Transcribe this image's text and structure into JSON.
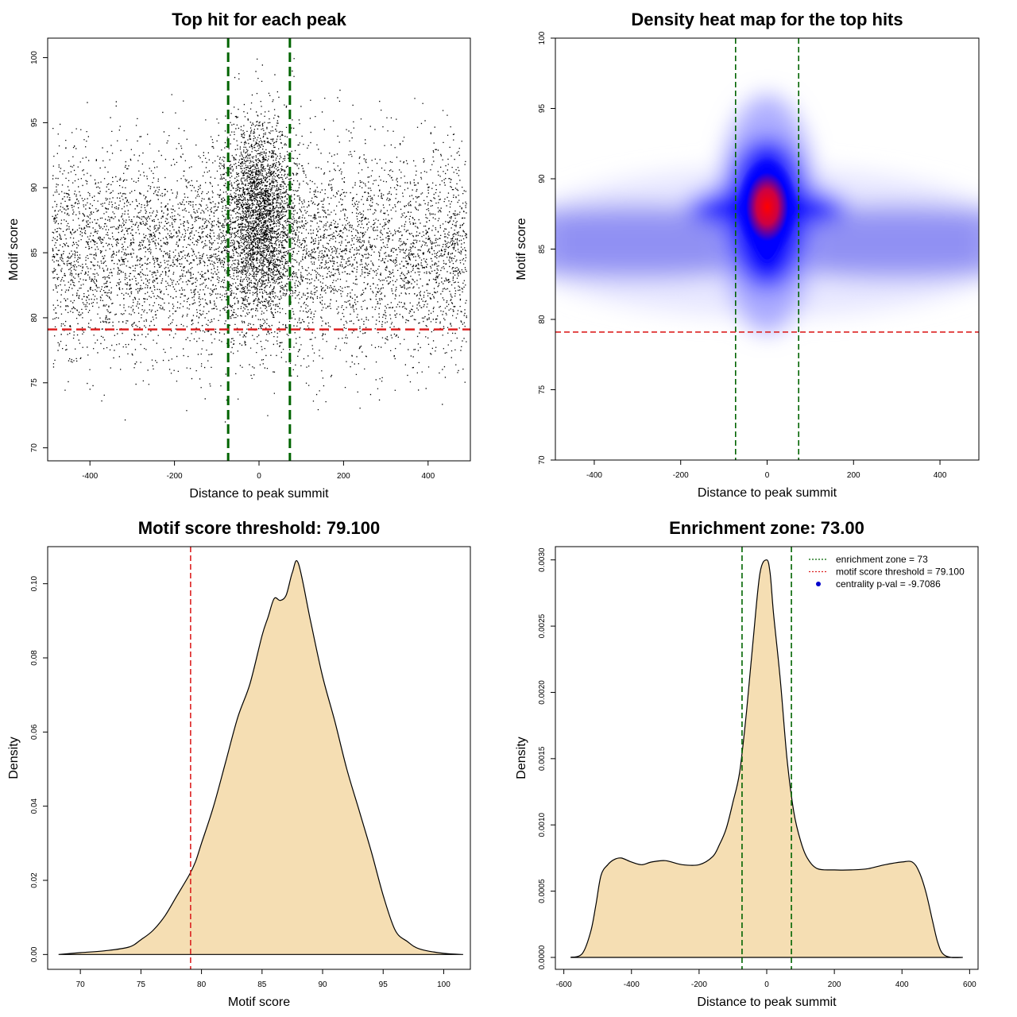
{
  "chart_data": [
    {
      "id": "scatter",
      "type": "scatter",
      "title": "Top hit for each peak",
      "xlabel": "Distance to peak summit",
      "ylabel": "Motif score",
      "xlim": [
        -500,
        500
      ],
      "ylim": [
        69,
        101.5
      ],
      "xticks": [
        -400,
        -200,
        0,
        200,
        400
      ],
      "yticks": [
        70,
        75,
        80,
        85,
        90,
        95,
        100
      ],
      "point_color": "#000000",
      "vlines": [
        -73,
        73
      ],
      "vline_color": "#006400",
      "hline": 79.1,
      "hline_color": "#dd2222",
      "distribution": {
        "n_points": 9000,
        "x_range": [
          -490,
          490
        ],
        "central_fraction": 0.3,
        "central_x_sd": 40,
        "score_center_central": 88,
        "score_center_background": 85,
        "score_sd": 4
      }
    },
    {
      "id": "heatmap",
      "type": "heatmap",
      "title": "Density heat map for the top hits",
      "xlabel": "Distance to peak summit",
      "ylabel": "Motif score",
      "xlim": [
        -490,
        490
      ],
      "ylim": [
        70,
        100
      ],
      "xticks": [
        -400,
        -200,
        0,
        200,
        400
      ],
      "yticks": [
        70,
        75,
        80,
        85,
        90,
        95,
        100
      ],
      "color_scale": [
        "#ffffff",
        "#0000ff",
        "#ff0000"
      ],
      "peak": {
        "x": 0,
        "y": 88
      },
      "background_band_score": 85.5,
      "vlines": [
        -73,
        73
      ],
      "vline_color": "#006400",
      "hline": 79.1,
      "hline_color": "#dd2222"
    },
    {
      "id": "score-density",
      "type": "area",
      "title": "Motif score threshold: 79.100",
      "xlabel": "Motif score",
      "ylabel": "Density",
      "xlim": [
        67.3,
        102.2
      ],
      "ylim": [
        -0.004,
        0.11
      ],
      "xticks": [
        70,
        75,
        80,
        85,
        90,
        95,
        100
      ],
      "yticks": [
        0.0,
        0.02,
        0.04,
        0.06,
        0.08,
        0.1
      ],
      "ytick_labels": [
        "0.00",
        "0.02",
        "0.04",
        "0.06",
        "0.08",
        "0.10"
      ],
      "fill_color": "#f5deb3",
      "vline": 79.1,
      "vline_color": "#dd2222",
      "x": [
        68.2,
        70,
        72,
        74,
        75,
        76,
        77,
        78,
        79,
        79.5,
        80,
        81,
        82,
        83,
        84,
        85,
        85.5,
        86,
        86.5,
        87,
        87.5,
        88,
        89,
        90,
        91,
        92,
        93,
        94,
        95,
        96,
        97,
        98,
        100,
        101.6
      ],
      "y": [
        0.0,
        0.0005,
        0.001,
        0.002,
        0.004,
        0.0065,
        0.0105,
        0.016,
        0.0215,
        0.025,
        0.03,
        0.04,
        0.052,
        0.064,
        0.073,
        0.086,
        0.091,
        0.096,
        0.0955,
        0.097,
        0.103,
        0.1055,
        0.09,
        0.075,
        0.063,
        0.05,
        0.039,
        0.028,
        0.016,
        0.0065,
        0.0035,
        0.0015,
        0.0003,
        0.0
      ]
    },
    {
      "id": "distance-density",
      "type": "area",
      "title": "Enrichment zone: 73.00",
      "xlabel": "Distance to peak summit",
      "ylabel": "Density",
      "xlim": [
        -625,
        625
      ],
      "ylim": [
        -9e-05,
        0.0031
      ],
      "xticks": [
        -600,
        -400,
        -200,
        0,
        200,
        400,
        600
      ],
      "yticks": [
        0.0,
        0.0005,
        0.001,
        0.0015,
        0.002,
        0.0025,
        0.003
      ],
      "ytick_labels": [
        "0.0000",
        "0.0005",
        "0.0010",
        "0.0015",
        "0.0020",
        "0.0025",
        "0.0030"
      ],
      "fill_color": "#f5deb3",
      "vlines": [
        -73,
        73
      ],
      "vline_color": "#006400",
      "x": [
        -580,
        -545,
        -520,
        -505,
        -490,
        -470,
        -450,
        -430,
        -400,
        -370,
        -340,
        -300,
        -250,
        -200,
        -160,
        -140,
        -120,
        -100,
        -80,
        -60,
        -40,
        -20,
        0,
        10,
        20,
        40,
        60,
        80,
        100,
        120,
        150,
        200,
        250,
        300,
        350,
        400,
        430,
        450,
        470,
        490,
        505,
        520,
        545,
        580
      ],
      "y": [
        0.0,
        3e-05,
        0.0002,
        0.0004,
        0.00062,
        0.0007,
        0.00074,
        0.00075,
        0.00072,
        0.0007,
        0.00072,
        0.00073,
        0.0007,
        0.0007,
        0.00076,
        0.00085,
        0.00097,
        0.00117,
        0.0014,
        0.00185,
        0.0024,
        0.0029,
        0.003,
        0.0029,
        0.0026,
        0.0021,
        0.0015,
        0.0011,
        0.00088,
        0.00075,
        0.00067,
        0.00066,
        0.00066,
        0.00067,
        0.0007,
        0.00072,
        0.00072,
        0.00065,
        0.0005,
        0.00028,
        0.00012,
        3e-05,
        0.0,
        0.0
      ]
    }
  ],
  "legend": {
    "position": "top-right",
    "items": [
      {
        "label": "enrichment zone = 73",
        "color": "#006400",
        "symbol": "dotted-line"
      },
      {
        "label": "motif score threshold = 79.100",
        "color": "#dd2222",
        "symbol": "dotted-line"
      },
      {
        "label": "centrality p-val = -9.7086",
        "color": "#0000cc",
        "symbol": "dot"
      }
    ]
  }
}
